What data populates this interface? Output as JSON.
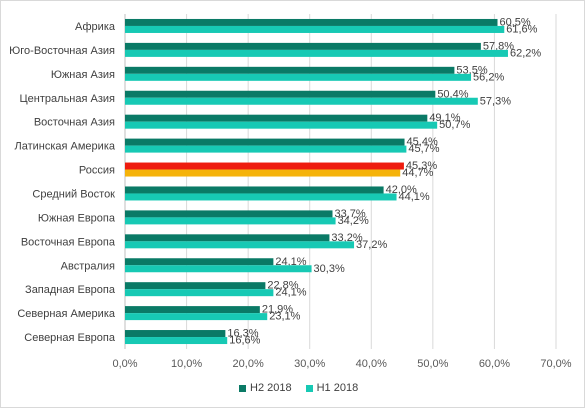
{
  "chart_data": {
    "type": "bar",
    "orientation": "horizontal",
    "categories": [
      "Африка",
      "Юго-Восточная Азия",
      "Южная Азия",
      "Центральная Азия",
      "Восточная Азия",
      "Латинская Америка",
      "Россия",
      "Средний Восток",
      "Южная Европа",
      "Восточная Европа",
      "Австралия",
      "Западная Европа",
      "Северная Америка",
      "Северная Европа"
    ],
    "series": [
      {
        "name": "Н2 2018",
        "color": "#0a7a66",
        "values": [
          60.5,
          57.8,
          53.5,
          50.4,
          49.1,
          45.4,
          45.3,
          42.0,
          33.7,
          33.2,
          24.1,
          22.8,
          21.9,
          16.3
        ],
        "labels": [
          "60,5%",
          "57,8%",
          "53,5%",
          "50,4%",
          "49,1%",
          "45,4%",
          "45,3%",
          "42,0%",
          "33,7%",
          "33,2%",
          "24,1%",
          "22,8%",
          "21,9%",
          "16,3%"
        ]
      },
      {
        "name": "Н1 2018",
        "color": "#17c9b4",
        "values": [
          61.6,
          62.2,
          56.2,
          57.3,
          50.7,
          45.7,
          44.7,
          44.1,
          34.2,
          37.2,
          30.3,
          24.1,
          23.1,
          16.6
        ],
        "labels": [
          "61,6%",
          "62,2%",
          "56,2%",
          "57,3%",
          "50,7%",
          "45,7%",
          "44,7%",
          "44,1%",
          "34,2%",
          "37,2%",
          "30,3%",
          "24,1%",
          "23,1%",
          "16,6%"
        ]
      }
    ],
    "highlight": {
      "category": "Россия",
      "colors": [
        "#ee1c0f",
        "#f5b30a"
      ]
    },
    "xlim": [
      0,
      70
    ],
    "ticks": [
      0,
      10,
      20,
      30,
      40,
      50,
      60,
      70
    ],
    "tick_labels": [
      "0,0%",
      "10,0%",
      "20,0%",
      "30,0%",
      "40,0%",
      "50,0%",
      "60,0%",
      "70,0%"
    ],
    "grid": true,
    "legend_position": "bottom"
  }
}
